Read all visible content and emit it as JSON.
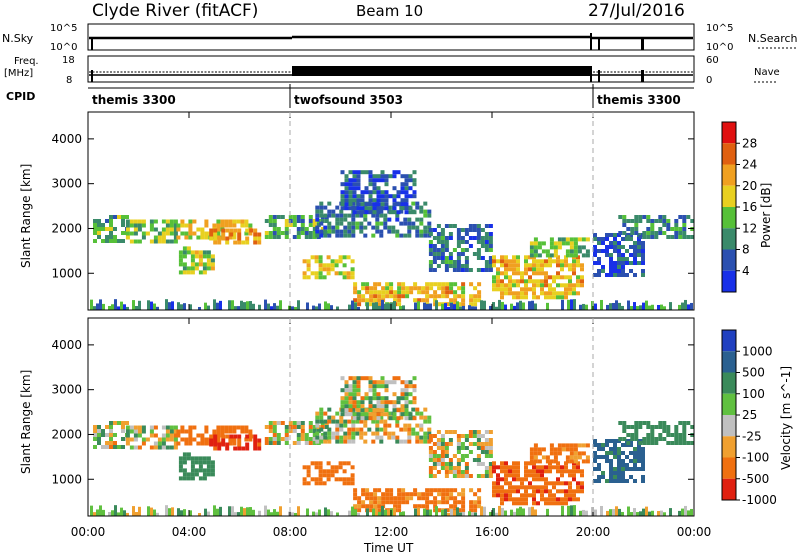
{
  "header": {
    "title": "Clyde River (fitACF)",
    "beam": "Beam 10",
    "date": "27/Jul/2016"
  },
  "panels": {
    "nsky_label": "N.Sky",
    "nsearch_label": "N.Search",
    "freq_label": "Freq.",
    "freq_unit": "[MHz]",
    "nave_label": "Nave",
    "cpid_label": "CPID",
    "nsky_ticks": [
      "10^5",
      "10^0"
    ],
    "nsearch_ticks": [
      "10^5",
      "10^0"
    ],
    "freq_ticks": [
      "18",
      "8"
    ],
    "nave_ticks": [
      "60",
      "0"
    ]
  },
  "chart_data": {
    "type": "heatmap",
    "xlabel": "Time UT",
    "x_ticks": [
      "00:00",
      "04:00",
      "08:00",
      "12:00",
      "16:00",
      "20:00",
      "00:00"
    ],
    "xlim_hours": [
      0,
      24
    ],
    "cpid_segments": [
      {
        "label": "themis 3300",
        "start_hour": 0,
        "end_hour": 8
      },
      {
        "label": "twofsound 3503",
        "start_hour": 8,
        "end_hour": 20
      },
      {
        "label": "themis 3300",
        "start_hour": 20,
        "end_hour": 24
      }
    ],
    "power": {
      "ylabel": "Slant Range [km]",
      "y_ticks": [
        "1000",
        "2000",
        "3000",
        "4000"
      ],
      "ylim": [
        180,
        4600
      ],
      "colorbar_label": "Power [dB]",
      "colorbar_ticks": [
        "4",
        "8",
        "12",
        "16",
        "20",
        "24",
        "28"
      ],
      "colors": [
        "#1830e8",
        "#2b50b0",
        "#3a8a6a",
        "#56c038",
        "#e8d020",
        "#f0a020",
        "#e06010",
        "#e01010"
      ]
    },
    "velocity": {
      "ylabel": "Slant Range [km]",
      "y_ticks": [
        "1000",
        "2000",
        "3000",
        "4000"
      ],
      "ylim": [
        180,
        4600
      ],
      "colorbar_label": "Velocity [m s^-1]",
      "colorbar_ticks": [
        "1000",
        "500",
        "100",
        "25",
        "-25",
        "-100",
        "-500",
        "-1000"
      ],
      "colors": [
        "#2040c0",
        "#2a6090",
        "#3a8a5a",
        "#60c040",
        "#c0c0c0",
        "#f0a030",
        "#f07010",
        "#e02010"
      ]
    },
    "echo_regions": [
      {
        "start_hour": 0.2,
        "end_hour": 1.5,
        "range_km": [
          1750,
          2300
        ],
        "power_db": 14,
        "vel": 0
      },
      {
        "start_hour": 1.5,
        "end_hour": 3.5,
        "range_km": [
          1700,
          2200
        ],
        "power_db": 16,
        "vel": 0
      },
      {
        "start_hour": 3.5,
        "end_hour": 6.5,
        "range_km": [
          1800,
          2200
        ],
        "power_db": 20,
        "vel": -300
      },
      {
        "start_hour": 4.8,
        "end_hour": 6.8,
        "range_km": [
          1700,
          2000
        ],
        "power_db": 24,
        "vel": -600
      },
      {
        "start_hour": 3.6,
        "end_hour": 5.0,
        "range_km": [
          1000,
          1600
        ],
        "power_db": 18,
        "vel": 300
      },
      {
        "start_hour": 7.0,
        "end_hour": 9.5,
        "range_km": [
          1800,
          2300
        ],
        "power_db": 14,
        "vel": 0
      },
      {
        "start_hour": 9.0,
        "end_hour": 13.5,
        "range_km": [
          1800,
          2600
        ],
        "power_db": 10,
        "vel": 0
      },
      {
        "start_hour": 10.0,
        "end_hour": 13.0,
        "range_km": [
          2400,
          3300
        ],
        "power_db": 8,
        "vel": 0
      },
      {
        "start_hour": 8.5,
        "end_hour": 10.5,
        "range_km": [
          900,
          1400
        ],
        "power_db": 20,
        "vel": -300
      },
      {
        "start_hour": 10.5,
        "end_hour": 15.5,
        "range_km": [
          350,
          800
        ],
        "power_db": 22,
        "vel": -200
      },
      {
        "start_hour": 13.5,
        "end_hour": 16.0,
        "range_km": [
          1100,
          2100
        ],
        "power_db": 10,
        "vel": 0
      },
      {
        "start_hour": 16.0,
        "end_hour": 19.5,
        "range_km": [
          500,
          1400
        ],
        "power_db": 22,
        "vel": -400
      },
      {
        "start_hour": 17.5,
        "end_hour": 19.8,
        "range_km": [
          1400,
          1800
        ],
        "power_db": 16,
        "vel": -200
      },
      {
        "start_hour": 20.0,
        "end_hour": 22.0,
        "range_km": [
          1000,
          1900
        ],
        "power_db": 8,
        "vel": 600
      },
      {
        "start_hour": 21.0,
        "end_hour": 24.0,
        "range_km": [
          1800,
          2300
        ],
        "power_db": 12,
        "vel": 300
      }
    ]
  }
}
